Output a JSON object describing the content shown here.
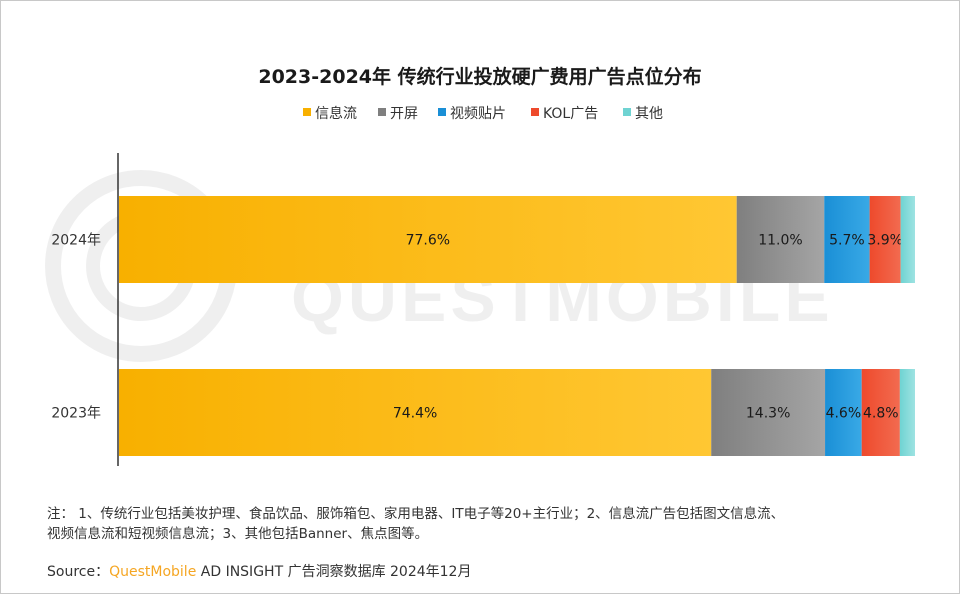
{
  "chart_data": {
    "type": "bar",
    "orientation": "horizontal",
    "stacked": true,
    "percent_stacked": true,
    "title": "2023-2024年 传统行业投放硬广费用广告点位分布",
    "categories": [
      "2024年",
      "2023年"
    ],
    "series": [
      {
        "name": "信息流",
        "values": [
          77.6,
          74.4
        ],
        "labels": [
          "77.6%",
          "74.4%"
        ]
      },
      {
        "name": "开屏",
        "values": [
          11.0,
          14.3
        ],
        "labels": [
          "11.0%",
          "14.3%"
        ]
      },
      {
        "name": "视频贴片",
        "values": [
          5.7,
          4.6
        ],
        "labels": [
          "5.7%",
          "4.6%"
        ]
      },
      {
        "name": "KOL广告",
        "values": [
          3.9,
          4.8
        ],
        "labels": [
          "3.9%",
          "4.8%"
        ]
      },
      {
        "name": "其他",
        "values": [
          1.8,
          1.9
        ],
        "labels": [
          "",
          ""
        ]
      }
    ],
    "legend_position": "top",
    "grid": false
  },
  "colors": {
    "series": [
      "#f8b000",
      "#7f7f7f",
      "#1a8fd6",
      "#ee4a2c",
      "#6fd3d2"
    ],
    "series_light": [
      "#ffc733",
      "#a5a5a5",
      "#39a9e6",
      "#f26b50",
      "#9ee3e2"
    ],
    "accent": "#f5a623"
  },
  "watermark": "QUESTMOBILE",
  "notes": {
    "line1": "注：  1、传统行业包括美妆护理、食品饮品、服饰箱包、家用电器、IT电子等20+主行业；2、信息流广告包括图文信息流、",
    "line2": "视频信息流和短视频信息流；3、其他包括Banner、焦点图等。"
  },
  "source": {
    "prefix": "Source：",
    "brand": "QuestMobile",
    "rest": " AD INSIGHT 广告洞察数据库 2024年12月"
  }
}
